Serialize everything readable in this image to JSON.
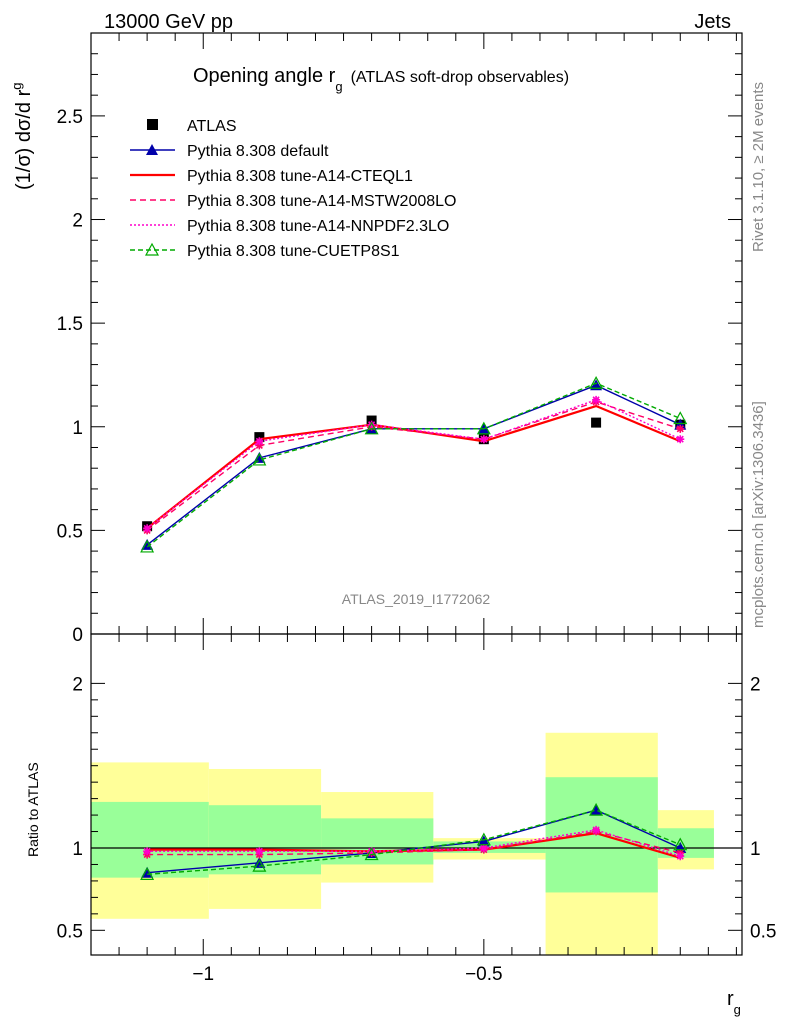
{
  "header": {
    "left": "13000 GeV pp",
    "right": "Jets"
  },
  "side_text": {
    "rivet": "Rivet 3.1.10, ≥ 2M events",
    "mcplots": "mcplots.cern.ch [arXiv:1306.3436]"
  },
  "analysis_label": "ATLAS_2019_I1772062",
  "colors": {
    "atlas": "#000000",
    "default": "#0000aa",
    "cteql1": "#ff0000",
    "mstw": "#ff0066",
    "nnpdf": "#ff00cc",
    "cuetp8s1": "#00aa00",
    "band_yellow": "#ffff99",
    "band_green": "#99ff99"
  },
  "chart_data": [
    {
      "type": "line",
      "title": "Opening angle r",
      "title_sub": "g",
      "title_extra": "(ATLAS soft-drop observables)",
      "ylabel": "(1/σ) dσ/d r",
      "ylabel_sub": "g",
      "xlim": [
        -1.2,
        -0.04
      ],
      "ylim": [
        0,
        2.9
      ],
      "yticks": [
        0,
        0.5,
        1,
        1.5,
        2,
        2.5
      ],
      "ytick_labels": [
        "0",
        "0.5",
        "1",
        "1.5",
        "2",
        "2.5"
      ],
      "legend_position": "top-left",
      "x_bins": [
        [
          -1.2,
          -1.0
        ],
        [
          -1.0,
          -0.8
        ],
        [
          -0.8,
          -0.6
        ],
        [
          -0.6,
          -0.4
        ],
        [
          -0.4,
          -0.2
        ],
        [
          -0.2,
          -0.1
        ]
      ],
      "x": [
        -1.1,
        -0.9,
        -0.7,
        -0.5,
        -0.3,
        -0.15
      ],
      "series": [
        {
          "name": "ATLAS",
          "key": "atlas",
          "marker": "square",
          "values": [
            0.52,
            0.95,
            1.03,
            0.94,
            1.02,
            1.01
          ]
        },
        {
          "name": "Pythia 8.308 default",
          "key": "default",
          "marker": "triangle",
          "dash": "",
          "values": [
            0.43,
            0.85,
            0.99,
            0.99,
            1.2,
            1.01
          ]
        },
        {
          "name": "Pythia 8.308 tune-A14-CTEQL1",
          "key": "cteql1",
          "marker": "none",
          "dash": "",
          "values": [
            0.51,
            0.94,
            1.01,
            0.93,
            1.1,
            0.93
          ]
        },
        {
          "name": "Pythia 8.308 tune-A14-MSTW2008LO",
          "key": "mstw",
          "marker": "star",
          "dash": "6,4",
          "values": [
            0.5,
            0.91,
            1.0,
            0.94,
            1.12,
            0.99
          ]
        },
        {
          "name": "Pythia 8.308 tune-A14-NNPDF2.3LO",
          "key": "nnpdf",
          "marker": "star",
          "dash": "2,2",
          "values": [
            0.51,
            0.93,
            1.01,
            0.94,
            1.13,
            0.94
          ]
        },
        {
          "name": "Pythia 8.308 tune-CUETP8S1",
          "key": "cuetp8s1",
          "marker": "triangle-open",
          "dash": "5,3",
          "values": [
            0.42,
            0.84,
            0.99,
            0.99,
            1.21,
            1.04
          ]
        }
      ]
    },
    {
      "type": "line",
      "ylabel": "Ratio to ATLAS",
      "xlabel": "r",
      "xlabel_sub": "g",
      "xlim": [
        -1.2,
        -0.04
      ],
      "ylim": [
        0.35,
        2.3
      ],
      "yticks": [
        0.5,
        1,
        2
      ],
      "ytick_labels": [
        "0.5",
        "1",
        "2"
      ],
      "xticks": [
        -1,
        -0.5
      ],
      "xtick_labels": [
        "−1",
        "−0.5"
      ],
      "bands": {
        "x_bins": [
          [
            -1.2,
            -0.99
          ],
          [
            -0.99,
            -0.79
          ],
          [
            -0.79,
            -0.59
          ],
          [
            -0.59,
            -0.39
          ],
          [
            -0.39,
            -0.19
          ],
          [
            -0.19,
            -0.09
          ]
        ],
        "yellow": [
          [
            0.57,
            1.52
          ],
          [
            0.63,
            1.48
          ],
          [
            0.79,
            1.34
          ],
          [
            0.93,
            1.06
          ],
          [
            0.3,
            1.7
          ],
          [
            0.87,
            1.23
          ]
        ],
        "green": [
          [
            0.82,
            1.28
          ],
          [
            0.84,
            1.26
          ],
          [
            0.9,
            1.18
          ],
          [
            0.97,
            1.04
          ],
          [
            0.73,
            1.43
          ],
          [
            0.94,
            1.12
          ]
        ]
      },
      "x": [
        -1.1,
        -0.9,
        -0.7,
        -0.5,
        -0.3,
        -0.15
      ],
      "series": [
        {
          "key": "default",
          "marker": "triangle",
          "dash": "",
          "values": [
            0.85,
            0.91,
            0.97,
            1.04,
            1.23,
            1.0
          ]
        },
        {
          "key": "cteql1",
          "marker": "none",
          "dash": "",
          "values": [
            0.99,
            0.99,
            0.98,
            0.99,
            1.09,
            0.94
          ]
        },
        {
          "key": "mstw",
          "marker": "star",
          "dash": "6,4",
          "values": [
            0.96,
            0.96,
            0.97,
            0.99,
            1.1,
            0.97
          ]
        },
        {
          "key": "nnpdf",
          "marker": "star",
          "dash": "2,2",
          "values": [
            0.98,
            0.98,
            0.98,
            1.0,
            1.11,
            0.95
          ]
        },
        {
          "key": "cuetp8s1",
          "marker": "triangle-open",
          "dash": "5,3",
          "values": [
            0.84,
            0.89,
            0.96,
            1.05,
            1.23,
            1.02
          ]
        }
      ]
    }
  ]
}
